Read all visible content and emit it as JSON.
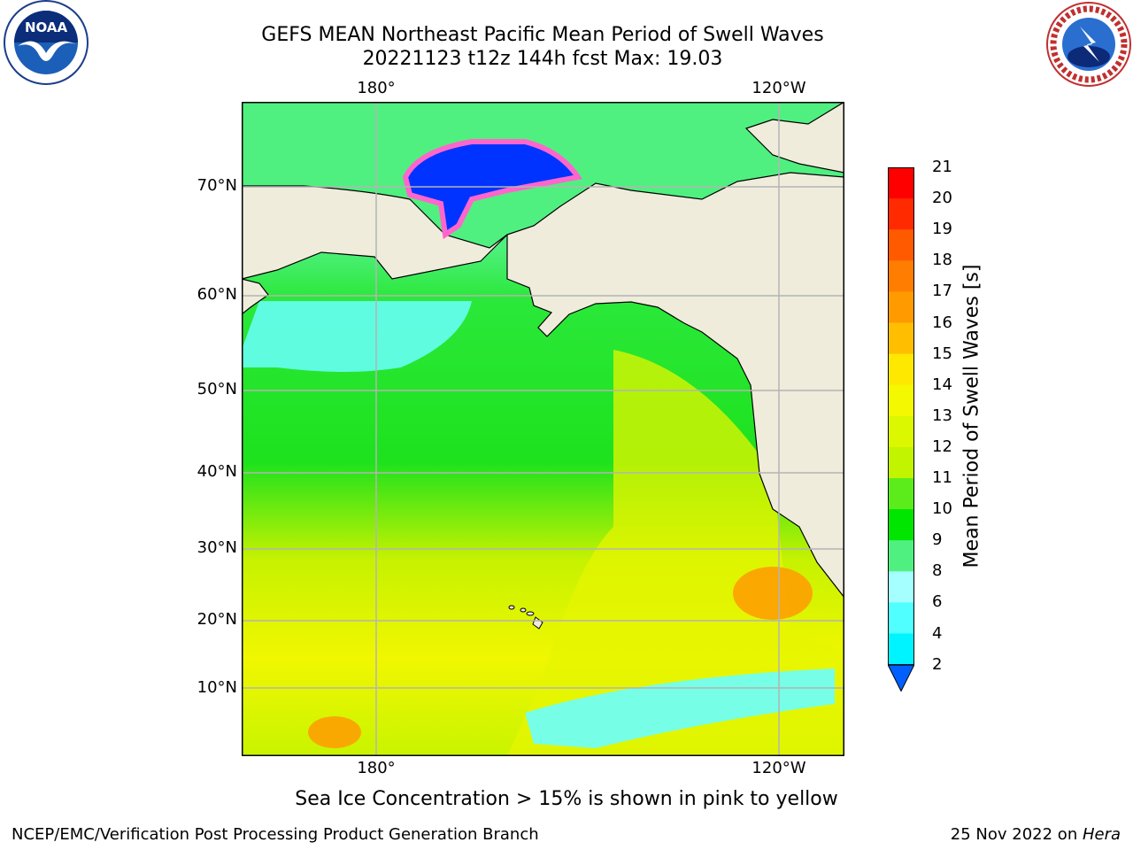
{
  "title": {
    "line1": "GEFS MEAN Northeast Pacific Mean Period of Swell Waves",
    "line2": "20221123 t12z 144h fcst   Max: 19.03"
  },
  "axes": {
    "lon_top": [
      "180°",
      "120°W"
    ],
    "lon_bottom": [
      "180°",
      "120°W"
    ],
    "lat": [
      "70°N",
      "60°N",
      "50°N",
      "40°N",
      "30°N",
      "20°N",
      "10°N"
    ]
  },
  "colorbar": {
    "title": "Mean Period of Swell Waves [s]",
    "ticks": [
      "21",
      "20",
      "19",
      "18",
      "17",
      "16",
      "15",
      "14",
      "13",
      "12",
      "11",
      "10",
      "9",
      "8",
      "6",
      "4",
      "2"
    ],
    "colors": [
      "#ff0000",
      "#ff2a00",
      "#ff5a00",
      "#ff7d00",
      "#ff9a00",
      "#ffbe00",
      "#ffe800",
      "#f4f800",
      "#dcf800",
      "#c2f400",
      "#5cec1c",
      "#00e600",
      "#50f080",
      "#a6ffff",
      "#50ffff",
      "#00f4ff",
      "#00aaff",
      "#0060ff"
    ]
  },
  "note": "Sea Ice Concentration > 15% is shown in pink to yellow",
  "footer": {
    "left": "NCEP/EMC/Verification Post Processing Product Generation Branch",
    "date": "25 Nov 2022 on ",
    "host": "Hera"
  },
  "colors": {
    "land": "#efecdc",
    "grid": "#b4b4b4",
    "coast": "#000000"
  },
  "logos": [
    "noaa-logo",
    "national-weather-service-logo"
  ]
}
